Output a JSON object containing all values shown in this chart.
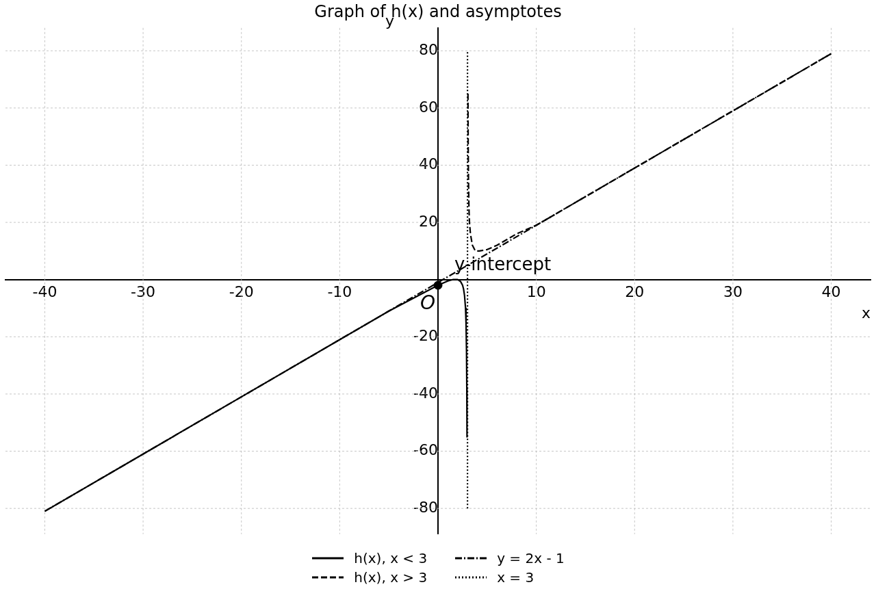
{
  "chart_data": {
    "type": "line",
    "title": "Graph of h(x) and asymptotes",
    "xlabel": "x",
    "ylabel": "y",
    "xlim": [
      -44,
      44
    ],
    "ylim": [
      -89,
      88
    ],
    "xticks": [
      -40,
      -30,
      -20,
      -10,
      10,
      20,
      30,
      40
    ],
    "yticks": [
      -80,
      -60,
      -40,
      -20,
      20,
      40,
      60,
      80
    ],
    "grid": true,
    "legend": "bottom",
    "annotations": [
      "O",
      {
        "text": "y-intercept",
        "x": 0,
        "y": -2
      }
    ],
    "series": [
      {
        "name": "h(x), x < 3",
        "type": "line",
        "line_style": "solid",
        "color": "#000000",
        "x": [
          -40,
          -30,
          -20,
          -10,
          -5,
          0,
          1,
          1.5,
          2,
          2.3,
          2.5,
          2.6,
          2.7,
          2.8,
          2.85,
          2.9,
          2.93,
          2.95
        ],
        "values": [
          -81,
          -61,
          -41,
          -21,
          -11,
          -2,
          -0.5,
          0,
          0,
          -0.7,
          -2,
          -3.3,
          -5.6,
          -10,
          -15,
          -25,
          -38,
          -55
        ]
      },
      {
        "name": "h(x), x > 3",
        "type": "line",
        "line_style": "dashed",
        "color": "#000000",
        "x": [
          3.05,
          3.07,
          3.1,
          3.15,
          3.2,
          3.3,
          3.5,
          3.8,
          4.2,
          5,
          6,
          8,
          10,
          15,
          20,
          30,
          40
        ],
        "values": [
          65,
          48,
          35,
          25,
          20,
          16,
          12,
          10,
          10,
          10.5,
          12,
          16,
          19,
          29,
          39,
          59,
          79
        ]
      },
      {
        "name": "y = 2x - 1",
        "type": "line",
        "line_style": "dashdot",
        "color": "#000000",
        "x": [
          -40,
          40
        ],
        "values": [
          -81,
          79
        ]
      },
      {
        "name": "x = 3",
        "type": "line",
        "line_style": "dotted",
        "color": "#000000",
        "x": [
          3,
          3
        ],
        "values": [
          -80,
          80
        ]
      },
      {
        "type": "scatter",
        "marker": "circle",
        "color": "#000000",
        "x": [
          0
        ],
        "values": [
          -2
        ]
      }
    ]
  }
}
